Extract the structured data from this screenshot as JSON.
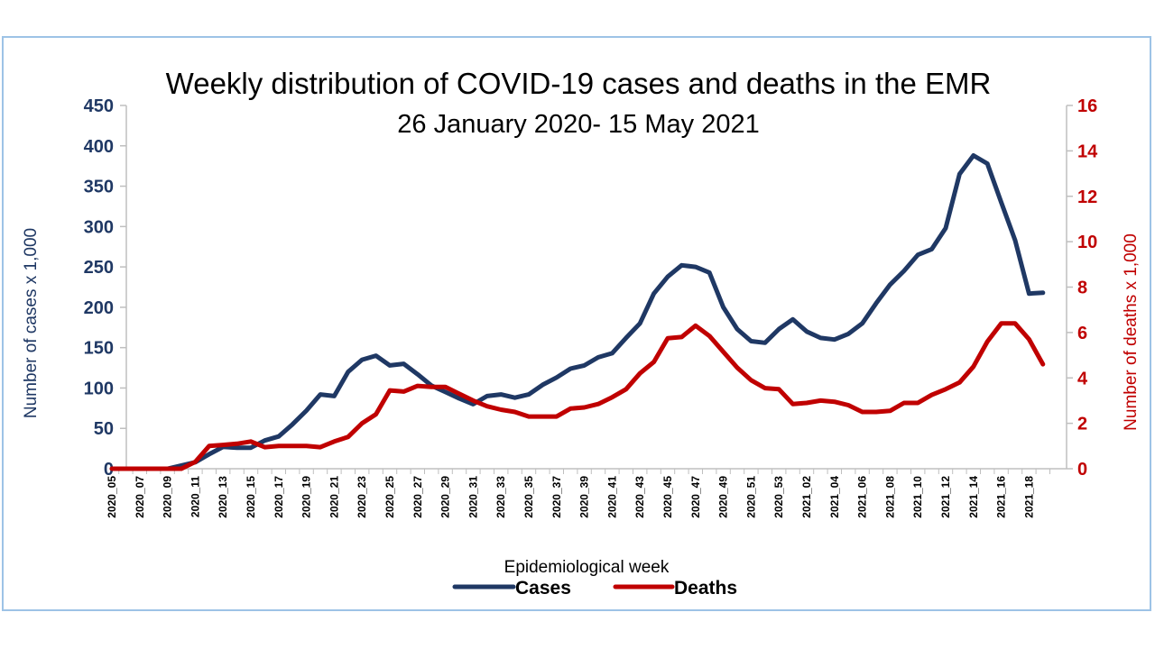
{
  "colors": {
    "frame_border": "#9dc3e6",
    "cases": "#1f3864",
    "deaths": "#c00000",
    "axis": "#bfbfbf"
  },
  "chart_data": {
    "type": "line",
    "title": "Weekly distribution of COVID-19 cases and deaths in the EMR",
    "subtitle": "26 January 2020- 15 May 2021",
    "xlabel": "Epidemiological week",
    "ylabel_left": "Number of cases x 1,000",
    "ylabel_right": "Number of deaths x 1,000",
    "ylim_left": [
      0,
      450
    ],
    "ylim_right": [
      0,
      16
    ],
    "yticks_left": [
      "0",
      "50",
      "100",
      "150",
      "200",
      "250",
      "300",
      "350",
      "400",
      "450"
    ],
    "yticks_right": [
      "0",
      "2",
      "4",
      "6",
      "8",
      "10",
      "12",
      "14",
      "16"
    ],
    "grid": false,
    "legend_position": "bottom",
    "x": [
      "2020_05",
      "2020_06",
      "2020_07",
      "2020_08",
      "2020_09",
      "2020_10",
      "2020_11",
      "2020_12",
      "2020_13",
      "2020_14",
      "2020_15",
      "2020_16",
      "2020_17",
      "2020_18",
      "2020_19",
      "2020_20",
      "2020_21",
      "2020_22",
      "2020_23",
      "2020_24",
      "2020_25",
      "2020_26",
      "2020_27",
      "2020_28",
      "2020_29",
      "2020_30",
      "2020_31",
      "2020_32",
      "2020_33",
      "2020_34",
      "2020_35",
      "2020_36",
      "2020_37",
      "2020_38",
      "2020_39",
      "2020_40",
      "2020_41",
      "2020_42",
      "2020_43",
      "2020_44",
      "2020_45",
      "2020_46",
      "2020_47",
      "2020_48",
      "2020_49",
      "2020_50",
      "2020_51",
      "2020_52",
      "2020_53",
      "2021_01",
      "2021_02",
      "2021_03",
      "2021_04",
      "2021_05",
      "2021_06",
      "2021_07",
      "2021_08",
      "2021_09",
      "2021_10",
      "2021_11",
      "2021_12",
      "2021_13",
      "2021_14",
      "2021_15",
      "2021_16",
      "2021_17",
      "2021_18",
      "2021_19"
    ],
    "x_tick_labels": [
      "2020_05",
      "2020_07",
      "2020_09",
      "2020_11",
      "2020_13",
      "2020_15",
      "2020_17",
      "2020_19",
      "2020_21",
      "2020_23",
      "2020_25",
      "2020_27",
      "2020_29",
      "2020_31",
      "2020_33",
      "2020_35",
      "2020_37",
      "2020_39",
      "2020_41",
      "2020_43",
      "2020_45",
      "2020_47",
      "2020_49",
      "2020_51",
      "2020_53",
      "2021_02",
      "2021_04",
      "2021_06",
      "2021_08",
      "2021_10",
      "2021_12",
      "2021_14",
      "2021_16",
      "2021_18"
    ],
    "series": [
      {
        "name": "Cases",
        "axis": "left",
        "values": [
          0,
          0,
          0,
          0,
          0,
          4,
          8,
          18,
          27,
          26,
          26,
          35,
          40,
          55,
          72,
          92,
          90,
          120,
          135,
          140,
          128,
          130,
          117,
          103,
          95,
          87,
          80,
          90,
          92,
          88,
          92,
          104,
          113,
          124,
          128,
          138,
          143,
          162,
          180,
          217,
          238,
          252,
          250,
          243,
          200,
          173,
          158,
          156,
          173,
          185,
          170,
          162,
          160,
          167,
          180,
          205,
          228,
          245,
          265,
          272,
          298,
          365,
          388,
          378,
          330,
          283,
          217,
          218
        ]
      },
      {
        "name": "Deaths",
        "axis": "right",
        "values": [
          0,
          0,
          0,
          0,
          0,
          0,
          0.3,
          1.0,
          1.05,
          1.1,
          1.2,
          0.95,
          1.0,
          1.0,
          1.0,
          0.95,
          1.2,
          1.4,
          2.0,
          2.4,
          3.45,
          3.4,
          3.65,
          3.6,
          3.6,
          3.3,
          3.0,
          2.75,
          2.6,
          2.5,
          2.3,
          2.3,
          2.3,
          2.65,
          2.7,
          2.85,
          3.15,
          3.5,
          4.2,
          4.7,
          5.75,
          5.8,
          6.3,
          5.85,
          5.15,
          4.45,
          3.9,
          3.55,
          3.5,
          2.85,
          2.9,
          3.0,
          2.95,
          2.8,
          2.5,
          2.5,
          2.55,
          2.9,
          2.9,
          3.25,
          3.5,
          3.8,
          4.5,
          5.6,
          6.4,
          6.4,
          5.7,
          4.6
        ]
      }
    ]
  }
}
